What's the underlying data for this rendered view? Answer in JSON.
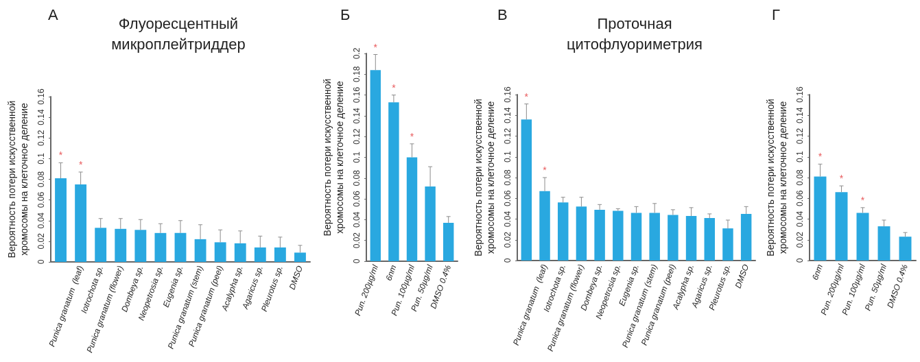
{
  "chart_data": [
    {
      "type": "bar",
      "title": "Флуоресцентный микроплейтриддер",
      "annotations": [
        "А"
      ],
      "ylabel": "Вероятность потери искусственной хромосомы на клеточное деление",
      "categories": [
        null,
        "Punica granatum  (leaf)",
        "Iotrochota sp.",
        "Punica granatum (flower)",
        "Dombeya sp.",
        "Neopetrosia sp.",
        "Eugenia sp.",
        "Punica granatum (stem)",
        "Punica granatum (peel)",
        "Acalypha sp.",
        "Agaricus sp.",
        "Pleurotus sp.",
        "DMSO"
      ],
      "values": [
        0.081,
        0.075,
        0.033,
        0.032,
        0.031,
        0.028,
        0.028,
        0.022,
        0.019,
        0.018,
        0.014,
        0.014,
        0.009
      ],
      "errors": [
        0.015,
        0.012,
        0.009,
        0.01,
        0.01,
        0.009,
        0.012,
        0.014,
        0.012,
        0.012,
        0.011,
        0.01,
        0.007
      ],
      "value_labels": [
        "*",
        "*",
        null,
        null,
        null,
        null,
        null,
        null,
        null,
        null,
        null,
        null,
        null
      ],
      "color": "#29a8e0",
      "ylim": [
        0,
        0.16
      ],
      "yticks": [
        0,
        0.02,
        0.04,
        0.06,
        0.08,
        0.1,
        0.12,
        0.14,
        0.16
      ]
    },
    {
      "type": "bar",
      "annotations": [
        "Б"
      ],
      "ylabel": "Вероятность потери искусственной хромосомы на клеточное деление",
      "categories": [
        "Pun. 200µg/ml",
        "6nm",
        "Pun. 100µg/ml",
        "Pun. 50µg/ml",
        "DMSO 0.4%"
      ],
      "values": [
        0.184,
        0.153,
        0.1,
        0.072,
        0.037
      ],
      "errors": [
        0.015,
        0.007,
        0.013,
        0.019,
        0.006
      ],
      "value_labels": [
        "*",
        "*",
        "*",
        null,
        null
      ],
      "color": "#29a8e0",
      "ylim": [
        0,
        0.2
      ],
      "yticks": [
        0,
        0.02,
        0.04,
        0.06,
        0.08,
        0.1,
        0.12,
        0.14,
        0.16,
        0.18,
        0.2
      ]
    },
    {
      "type": "bar",
      "title": "Проточная цитофлуориметрия",
      "annotations": [
        "В"
      ],
      "ylabel": "Вероятность потери искусственной хромосомы на клеточное деление",
      "categories": [
        null,
        "Punica granatum  (leaf)",
        "Iotrochota sp.",
        "Punica granatum (flower)",
        "Dombeya sp.",
        "Neopetrosia sp.",
        "Eugenia sp.",
        "Punica granatum (stem)",
        "Punica granatum (peel)",
        "Acalypha sp.",
        "Agaricus sp.",
        "Pleurotus sp.",
        "DMSO"
      ],
      "values": [
        0.136,
        0.067,
        0.056,
        0.052,
        0.049,
        0.048,
        0.046,
        0.046,
        0.044,
        0.043,
        0.041,
        0.031,
        0.045
      ],
      "errors": [
        0.015,
        0.013,
        0.005,
        0.009,
        0.005,
        0.002,
        0.006,
        0.009,
        0.005,
        0.008,
        0.004,
        0.008,
        0.007
      ],
      "value_labels": [
        "*",
        "*",
        null,
        null,
        null,
        null,
        null,
        null,
        null,
        null,
        null,
        null,
        null
      ],
      "color": "#29a8e0",
      "ylim": [
        0,
        0.16
      ],
      "yticks": [
        0,
        0.02,
        0.04,
        0.06,
        0.08,
        0.1,
        0.12,
        0.14,
        0.16
      ]
    },
    {
      "type": "bar",
      "annotations": [
        "Г"
      ],
      "ylabel": "Вероятность потери искусственной хромосомы на клеточное деление",
      "categories": [
        "6nm",
        "Pun. 200µg/ml",
        "Pun. 100µg/ml",
        "Pun. 50µg/ml",
        "DMSO 0.4%"
      ],
      "values": [
        0.081,
        0.066,
        0.046,
        0.033,
        0.023
      ],
      "errors": [
        0.012,
        0.006,
        0.005,
        0.006,
        0.004
      ],
      "value_labels": [
        "*",
        "*",
        "*",
        null,
        null
      ],
      "color": "#29a8e0",
      "ylim": [
        0,
        0.16
      ],
      "yticks": [
        0,
        0.02,
        0.04,
        0.06,
        0.08,
        0.1,
        0.12,
        0.14,
        0.16
      ]
    }
  ]
}
